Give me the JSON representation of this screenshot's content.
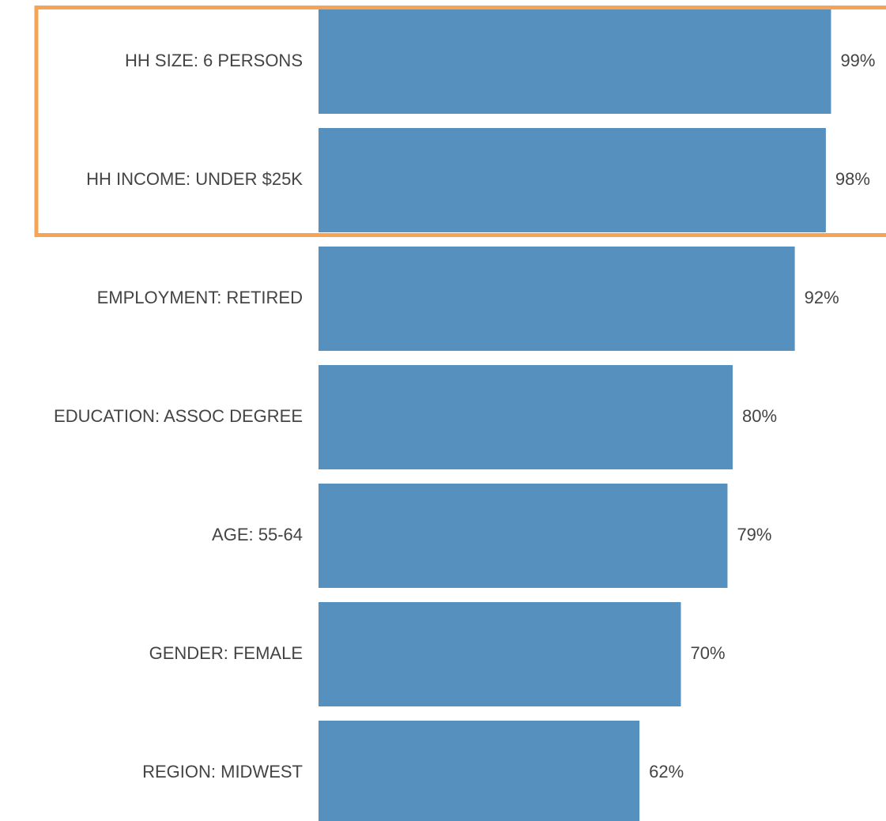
{
  "chart_data": {
    "type": "barh",
    "categories": [
      "HH SIZE: 6 PERSONS",
      "HH INCOME: UNDER $25K",
      "EMPLOYMENT: RETIRED",
      "EDUCATION: ASSOC DEGREE",
      "AGE: 55-64",
      "GENDER: FEMALE",
      "REGION: MIDWEST"
    ],
    "values": [
      99,
      98,
      92,
      80,
      79,
      70,
      62
    ],
    "value_labels": [
      "99%",
      "98%",
      "92%",
      "80%",
      "79%",
      "70%",
      "62%"
    ],
    "color": "#5590be"
  }
}
